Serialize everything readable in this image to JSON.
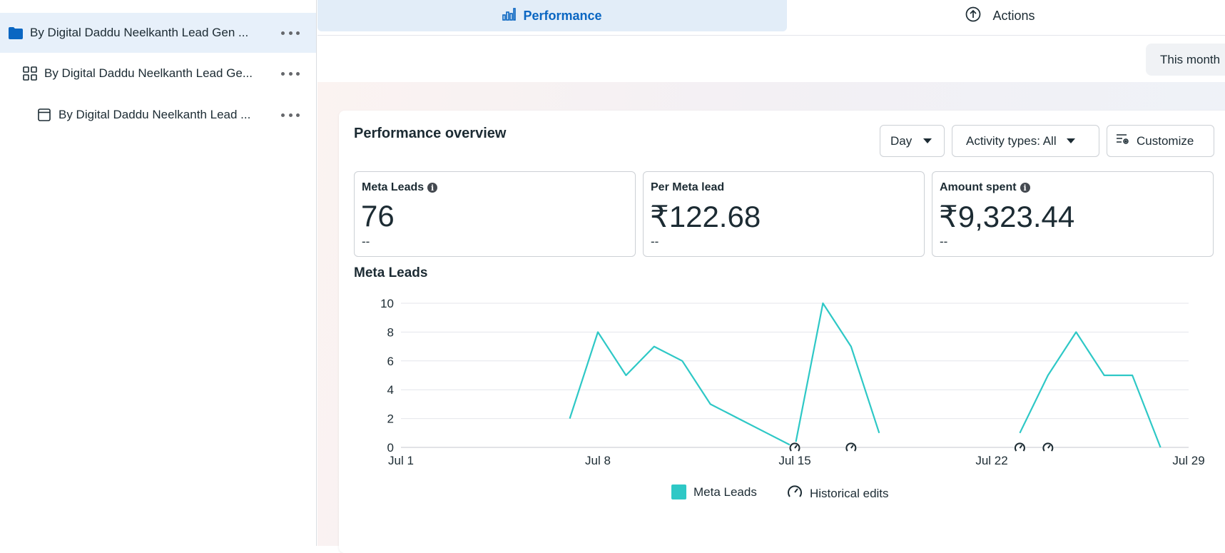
{
  "sidebar": {
    "items": [
      {
        "label": "By Digital Daddu Neelkanth Lead Gen ...",
        "icon": "folder-icon",
        "selected": true
      },
      {
        "label": "By Digital Daddu Neelkanth Lead Ge...",
        "icon": "ad-set-grid-icon",
        "selected": false
      },
      {
        "label": "By Digital Daddu Neelkanth Lead ...",
        "icon": "ad-icon",
        "selected": false
      }
    ]
  },
  "tabs": [
    {
      "label": "Performance",
      "icon": "bar-chart-icon",
      "active": true
    },
    {
      "label": "Actions",
      "icon": "upload-circle-icon",
      "active": false
    }
  ],
  "date_range": {
    "label": "This month"
  },
  "overview": {
    "title": "Performance overview",
    "day_label": "Day",
    "activity_label": "Activity types: All",
    "customize_label": "Customize",
    "metrics": [
      {
        "label": "Meta Leads",
        "value": "76",
        "comparison": "--",
        "has_info": true
      },
      {
        "label": "Per Meta lead",
        "value": "₹122.68",
        "comparison": "--",
        "has_info": false
      },
      {
        "label": "Amount spent",
        "value": "₹9,323.44",
        "comparison": "--",
        "has_info": true
      }
    ]
  },
  "chart_data": {
    "type": "line",
    "title": "Meta Leads",
    "x_tick_labels": [
      "Jul 1",
      "Jul 8",
      "Jul 15",
      "Jul 22",
      "Jul 29"
    ],
    "x_tick_days": [
      1,
      8,
      15,
      22,
      29
    ],
    "ylim": [
      0,
      10
    ],
    "y_ticks": [
      0,
      2,
      4,
      6,
      8,
      10
    ],
    "grid": true,
    "legend_position": "bottom-center",
    "series": [
      {
        "name": "Meta Leads",
        "color": "#2ec8c6",
        "segments": [
          [
            [
              7,
              2
            ],
            [
              8,
              8
            ],
            [
              9,
              5
            ],
            [
              10,
              7
            ],
            [
              11,
              6
            ],
            [
              12,
              3
            ],
            [
              13,
              2
            ],
            [
              14,
              1
            ],
            [
              15,
              0
            ],
            [
              16,
              10
            ],
            [
              17,
              7
            ],
            [
              18,
              1
            ]
          ],
          [
            [
              23,
              1
            ],
            [
              24,
              5
            ],
            [
              25,
              8
            ],
            [
              26,
              5
            ],
            [
              27,
              5
            ],
            [
              28,
              0
            ]
          ]
        ]
      }
    ],
    "historical_edit_days": [
      15,
      17,
      23,
      24
    ],
    "legend": [
      {
        "label": "Meta Leads",
        "kind": "swatch"
      },
      {
        "label": "Historical edits",
        "kind": "gauge-icon"
      }
    ]
  }
}
